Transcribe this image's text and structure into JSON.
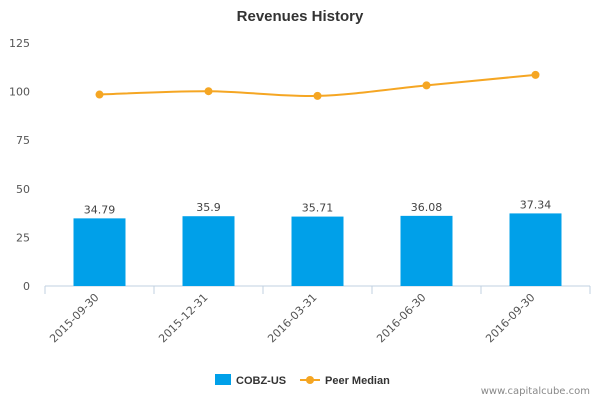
{
  "chart_data": {
    "type": "bar",
    "title": "Revenues History",
    "categories": [
      "2015-09-30",
      "2015-12-31",
      "2016-03-31",
      "2016-06-30",
      "2016-09-30"
    ],
    "series": [
      {
        "name": "COBZ-US",
        "type": "bar",
        "color": "#00a0e9",
        "values": [
          34.79,
          35.9,
          35.71,
          36.08,
          37.34
        ]
      },
      {
        "name": "Peer Median",
        "type": "line",
        "color": "#f5a623",
        "values": [
          98.5,
          100.2,
          97.8,
          103.2,
          108.6
        ]
      }
    ],
    "ylim": [
      0,
      125
    ],
    "yticks": [
      0,
      25,
      50,
      75,
      100,
      125
    ],
    "xlabel": "",
    "ylabel": "",
    "grid": false,
    "legend": "bottom-center"
  },
  "credit": "www.capitalcube.com"
}
